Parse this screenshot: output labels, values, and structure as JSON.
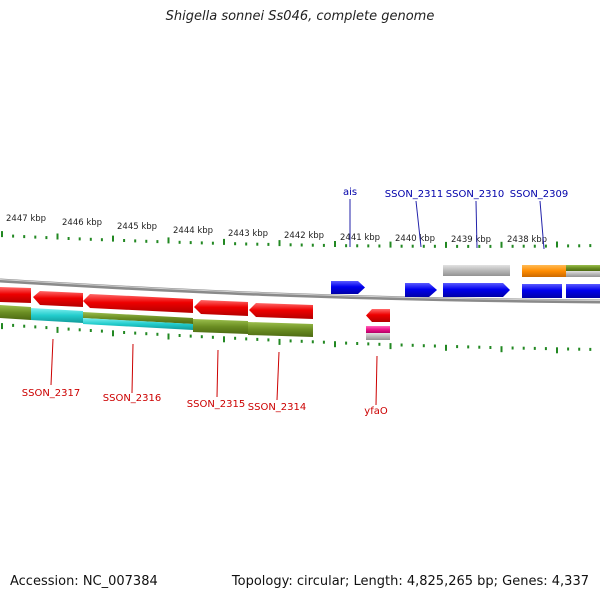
{
  "title": "Shigella sonnei Ss046, complete genome",
  "footer": {
    "accession": "Accession: NC_007384",
    "summary": "Topology: circular; Length: 4,825,265 bp; Genes: 4,337"
  },
  "scale_labels": [
    "2447 kbp",
    "2446 kbp",
    "2445 kbp",
    "2444 kbp",
    "2443 kbp",
    "2442 kbp",
    "2441 kbp",
    "2440 kbp",
    "2439 kbp",
    "2438 kbp"
  ],
  "gene_labels": {
    "top": [
      "ais",
      "SSON_2311",
      "SSON_2310",
      "SSON_2309"
    ],
    "bottom": [
      "SSON_2317",
      "SSON_2316",
      "SSON_2315",
      "SSON_2314",
      "yfaO"
    ]
  },
  "colors": {
    "forward_cds": "#0000ee",
    "reverse_cds": "#ee0000",
    "top_label": "#0000aa",
    "bottom_label": "#cc0000",
    "tick": "#228822",
    "olive_band": "#6b8e23",
    "cyan_band": "#22cccc",
    "gray_band": "#b8b8b8",
    "orange_band": "#ff8c00",
    "magenta_band": "#ee1188",
    "backbone": "#8a8a8a"
  }
}
